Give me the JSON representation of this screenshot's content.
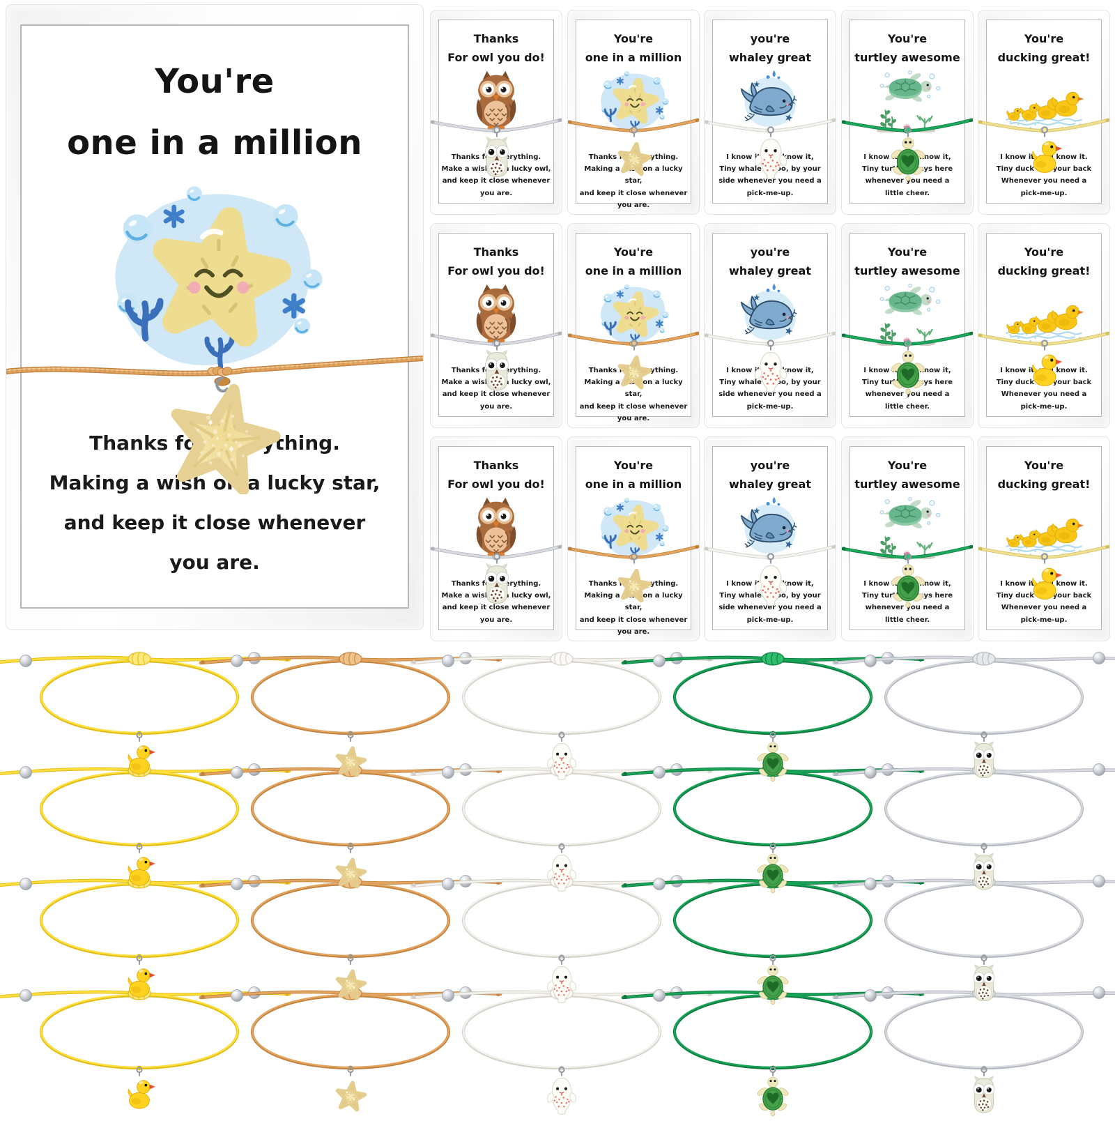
{
  "main_card": {
    "title_lines": [
      "You're",
      "one in a million"
    ],
    "message_lines": [
      "Thanks for everything.",
      "Making a wish on a lucky star,",
      "and keep it close whenever",
      "you are."
    ]
  },
  "card_designs": [
    {
      "name": "owl",
      "title_lines": [
        "Thanks",
        "For owl you do!"
      ],
      "message_lines": [
        "Thanks for everything.",
        "Make a wish on a lucky owl,",
        "and keep it close whenever",
        "you are."
      ],
      "cord": {
        "main": "#d9dbe0",
        "dark": "#aeb2ba",
        "knot": "#e9ebee"
      },
      "bracelet_cord": {
        "main": "#d8dade",
        "dark": "#b2b6bf",
        "knot": "#e6e8ec"
      }
    },
    {
      "name": "starfish",
      "title_lines": [
        "You're",
        "one in a million"
      ],
      "message_lines": [
        "Thanks for everything.",
        "Making a wish on a lucky star,",
        "and keep it close whenever",
        "you are."
      ],
      "cord": {
        "main": "#e2a55f",
        "dark": "#c2813c",
        "knot": "#eec189"
      },
      "bracelet_cord": {
        "main": "#e2a55f",
        "dark": "#c2813c",
        "knot": "#efc28a"
      }
    },
    {
      "name": "whale",
      "title_lines": [
        "you're",
        "whaley great"
      ],
      "message_lines": [
        "I know it, you know it,",
        "Tiny whale is too, by your",
        "side whenever you need a",
        "pick-me-up."
      ],
      "cord": {
        "main": "#f4f3ef",
        "dark": "#cfcec6",
        "knot": "#ffffff"
      },
      "bracelet_cord": {
        "main": "#f2f1ec",
        "dark": "#d2d0c7",
        "knot": "#fbfaf6"
      }
    },
    {
      "name": "turtle",
      "title_lines": [
        "You're",
        "turtley awesome"
      ],
      "message_lines": [
        "I know it, you know it,",
        "Tiny turtle always here",
        "whenever you need a",
        "little cheer."
      ],
      "cord": {
        "main": "#19a85c",
        "dark": "#0e7c41",
        "knot": "#35bd74"
      },
      "bracelet_cord": {
        "main": "#17a457",
        "dark": "#0d7a3e",
        "knot": "#2fbd6e"
      }
    },
    {
      "name": "duck",
      "title_lines": [
        "You're",
        "ducking great!"
      ],
      "message_lines": [
        "I know it, you know it.",
        "Tiny duck has your back",
        "Whenever you need a",
        "pick-me-up."
      ],
      "cord": {
        "main": "#efe093",
        "dark": "#d4bf5e",
        "knot": "#f5e9a8"
      },
      "bracelet_cord": {
        "main": "#ffdf3d",
        "dark": "#e0ba12",
        "knot": "#ffe87a"
      }
    }
  ],
  "cards_grid": {
    "rows": 3,
    "columns": 5
  },
  "bracelets": {
    "rows": 4,
    "column_order": [
      "duck",
      "starfish",
      "whale",
      "turtle",
      "owl"
    ]
  },
  "colors": {
    "background": "#ffffff",
    "card_border": "#b5b8ba",
    "bag_border": "#e4e4e4",
    "text": "#161616",
    "bead_silver": "#c9ccd2",
    "charm_hook": "#969ba3",
    "illustration_blue_blob": "#cfe7f6",
    "starfish_yellow": "#eedd90",
    "owl_brown": "#a96a3c",
    "whale_blue": "#7fa9cd",
    "turtle_green": "#68b68d",
    "duck_yellow": "#f9c615"
  }
}
